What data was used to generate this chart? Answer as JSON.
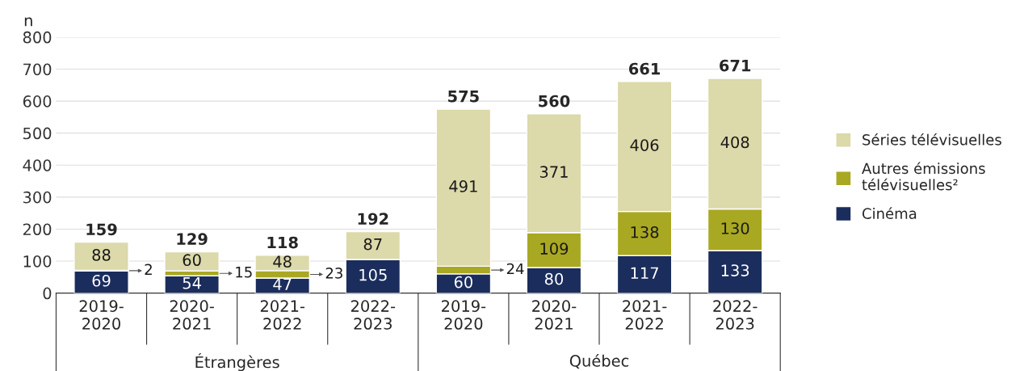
{
  "chart_data": {
    "type": "bar",
    "stacked": true,
    "ylabel": "n",
    "categories": [
      "2019-\n2020",
      "2020-\n2021",
      "2021-\n2022",
      "2022-\n2023",
      "2019-\n2020",
      "2020-\n2021",
      "2021-\n2022",
      "2022-\n2023"
    ],
    "series": [
      {
        "name": "Cinéma",
        "color": "#1b2d5c",
        "values": [
          69,
          54,
          47,
          105,
          60,
          80,
          117,
          133
        ]
      },
      {
        "name": "Autres émissions\ntélévisuelles²",
        "color": "#a9a822",
        "values": [
          2,
          15,
          23,
          null,
          24,
          109,
          138,
          130
        ]
      },
      {
        "name": "Séries télévisuelles",
        "color": "#dcd9aa",
        "values": [
          88,
          60,
          48,
          87,
          491,
          371,
          406,
          408
        ]
      }
    ],
    "totals": [
      "159",
      "129",
      "118",
      "192",
      "575",
      "560",
      "661",
      "671"
    ],
    "data_labels": true,
    "annotations": [
      "Étrangères",
      "Québec"
    ],
    "ylim": [
      0,
      800
    ],
    "yticks": [
      0,
      100,
      200,
      300,
      400,
      500,
      600,
      700,
      800
    ],
    "grid": "y",
    "legend": "right"
  }
}
